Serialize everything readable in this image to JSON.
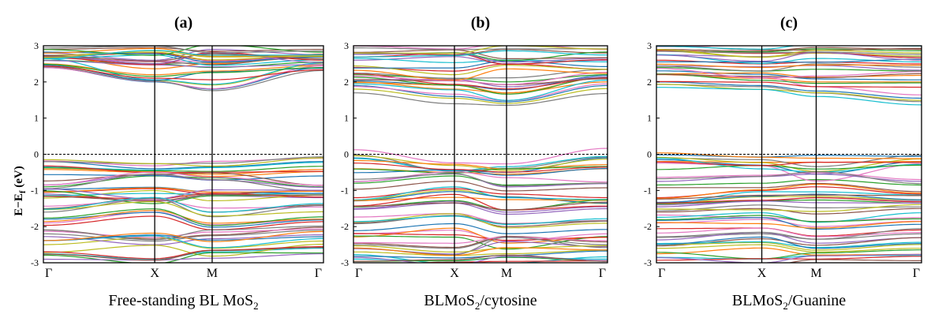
{
  "figure": {
    "ylabel_main": "E−E",
    "ylabel_sub": "f",
    "ylabel_unit": " (eV)"
  },
  "chart_data": [
    {
      "type": "line",
      "panel_label": "(a)",
      "caption_parts": [
        "Free-standing BL MoS",
        "2",
        ""
      ],
      "x_ticks": [
        "Γ",
        "X",
        "M",
        "Γ"
      ],
      "x_tick_positions": [
        0,
        1,
        1.516,
        2.516
      ],
      "ylim": [
        -3,
        3
      ],
      "y_ticks": [
        -3,
        -2,
        -1,
        0,
        1,
        2,
        3
      ],
      "fermi_level": 0,
      "series_summary": {
        "valence": [
          {
            "y": [
              -0.2,
              -0.4,
              -0.35,
              -0.2
            ]
          },
          {
            "y": [
              -0.42,
              -0.5,
              -0.55,
              -0.42
            ]
          },
          {
            "y": [
              -0.9,
              -0.6,
              -0.65,
              -0.9
            ]
          },
          {
            "y": [
              -1.05,
              -0.95,
              -1.1,
              -1.0
            ]
          },
          {
            "y": [
              -1.1,
              -1.3,
              -1.15,
              -1.2
            ]
          },
          {
            "y": [
              -1.5,
              -1.2,
              -1.6,
              -1.4
            ]
          },
          {
            "y": [
              -1.9,
              -1.6,
              -1.95,
              -1.8
            ]
          },
          {
            "y": [
              -2.2,
              -2.4,
              -2.25,
              -2.1
            ]
          },
          {
            "y": [
              -2.5,
              -2.3,
              -2.6,
              -2.4
            ]
          },
          {
            "y": [
              -2.75,
              -2.9,
              -2.7,
              -2.6
            ]
          }
        ],
        "conduction": [
          {
            "y": [
              2.4,
              2.0,
              1.8,
              2.4
            ]
          },
          {
            "y": [
              2.5,
              2.2,
              2.3,
              2.45
            ]
          },
          {
            "y": [
              2.6,
              2.5,
              2.4,
              2.55
            ]
          },
          {
            "y": [
              2.7,
              2.8,
              2.6,
              2.7
            ]
          },
          {
            "y": [
              2.8,
              2.6,
              2.9,
              2.75
            ]
          },
          {
            "y": [
              2.9,
              2.95,
              2.85,
              2.9
            ]
          }
        ]
      }
    },
    {
      "type": "line",
      "panel_label": "(b)",
      "caption_parts": [
        "BLMoS",
        "2",
        "/cytosine"
      ],
      "x_ticks": [
        "Γ",
        "X",
        "M",
        "Γ"
      ],
      "x_tick_positions": [
        0,
        1,
        1.516,
        2.516
      ],
      "ylim": [
        -3,
        3
      ],
      "y_ticks": [
        -3,
        -2,
        -1,
        0,
        1,
        2,
        3
      ],
      "fermi_level": 0,
      "series_summary": {
        "valence": [
          {
            "y": [
              -0.1,
              -0.45,
              -0.5,
              -0.1
            ]
          },
          {
            "y": [
              -0.4,
              -0.5,
              -0.55,
              -0.4
            ]
          },
          {
            "y": [
              -0.8,
              -0.6,
              -0.85,
              -0.8
            ]
          },
          {
            "y": [
              -1.2,
              -0.95,
              -1.1,
              -1.2
            ]
          },
          {
            "y": [
              -1.5,
              -1.3,
              -1.6,
              -1.45
            ]
          },
          {
            "y": [
              -1.9,
              -1.7,
              -2.0,
              -1.85
            ]
          },
          {
            "y": [
              -2.2,
              -2.1,
              -2.4,
              -2.2
            ]
          },
          {
            "y": [
              -2.5,
              -2.6,
              -2.3,
              -2.5
            ]
          },
          {
            "y": [
              -2.7,
              -2.8,
              -2.75,
              -2.65
            ]
          },
          {
            "y": [
              -2.9,
              -2.95,
              -2.85,
              -2.9
            ]
          }
        ],
        "conduction": [
          {
            "y": [
              1.9,
              1.6,
              1.45,
              1.9
            ]
          },
          {
            "y": [
              2.0,
              1.8,
              1.7,
              2.0
            ]
          },
          {
            "y": [
              2.2,
              2.1,
              2.0,
              2.2
            ]
          },
          {
            "y": [
              2.4,
              2.3,
              2.5,
              2.35
            ]
          },
          {
            "y": [
              2.6,
              2.7,
              2.5,
              2.6
            ]
          },
          {
            "y": [
              2.8,
              2.75,
              2.9,
              2.8
            ]
          }
        ]
      }
    },
    {
      "type": "line",
      "panel_label": "(c)",
      "caption_parts": [
        "BLMoS",
        "2",
        "/Guanine"
      ],
      "x_ticks": [
        "Γ",
        "X",
        "M",
        "Γ"
      ],
      "x_tick_positions": [
        0,
        1,
        1.516,
        2.516
      ],
      "ylim": [
        -3,
        3
      ],
      "y_ticks": [
        -3,
        -2,
        -1,
        0,
        1,
        2,
        3
      ],
      "fermi_level": 0,
      "series_summary": {
        "valence": [
          {
            "y": [
              -0.15,
              -0.3,
              -0.55,
              -0.2
            ]
          },
          {
            "y": [
              -0.2,
              -0.22,
              -0.22,
              -0.2
            ]
          },
          {
            "y": [
              -0.85,
              -0.8,
              -0.7,
              -0.85
            ]
          },
          {
            "y": [
              -1.2,
              -1.0,
              -0.9,
              -1.1
            ]
          },
          {
            "y": [
              -1.4,
              -1.3,
              -1.2,
              -1.3
            ]
          },
          {
            "y": [
              -1.6,
              -1.5,
              -1.65,
              -1.5
            ]
          },
          {
            "y": [
              -1.9,
              -1.8,
              -2.0,
              -1.85
            ]
          },
          {
            "y": [
              -2.3,
              -2.2,
              -2.35,
              -2.2
            ]
          },
          {
            "y": [
              -2.6,
              -2.5,
              -2.7,
              -2.6
            ]
          },
          {
            "y": [
              -2.85,
              -2.9,
              -2.8,
              -2.8
            ]
          }
        ],
        "conduction": [
          {
            "y": [
              2.0,
              1.9,
              1.75,
              1.55
            ]
          },
          {
            "y": [
              2.2,
              2.1,
              2.0,
              2.0
            ]
          },
          {
            "y": [
              2.4,
              2.3,
              2.35,
              2.3
            ]
          },
          {
            "y": [
              2.6,
              2.5,
              2.55,
              2.5
            ]
          },
          {
            "y": [
              2.75,
              2.7,
              2.8,
              2.7
            ]
          },
          {
            "y": [
              2.9,
              2.85,
              2.95,
              2.9
            ]
          }
        ]
      }
    }
  ],
  "colors": {
    "palette": [
      "#1f77b4",
      "#ff7f0e",
      "#2ca02c",
      "#d62728",
      "#9467bd",
      "#8c564b",
      "#e377c2",
      "#7f7f7f",
      "#bcbd22",
      "#17becf"
    ],
    "axes": "#000000",
    "fermi": "#000000"
  }
}
